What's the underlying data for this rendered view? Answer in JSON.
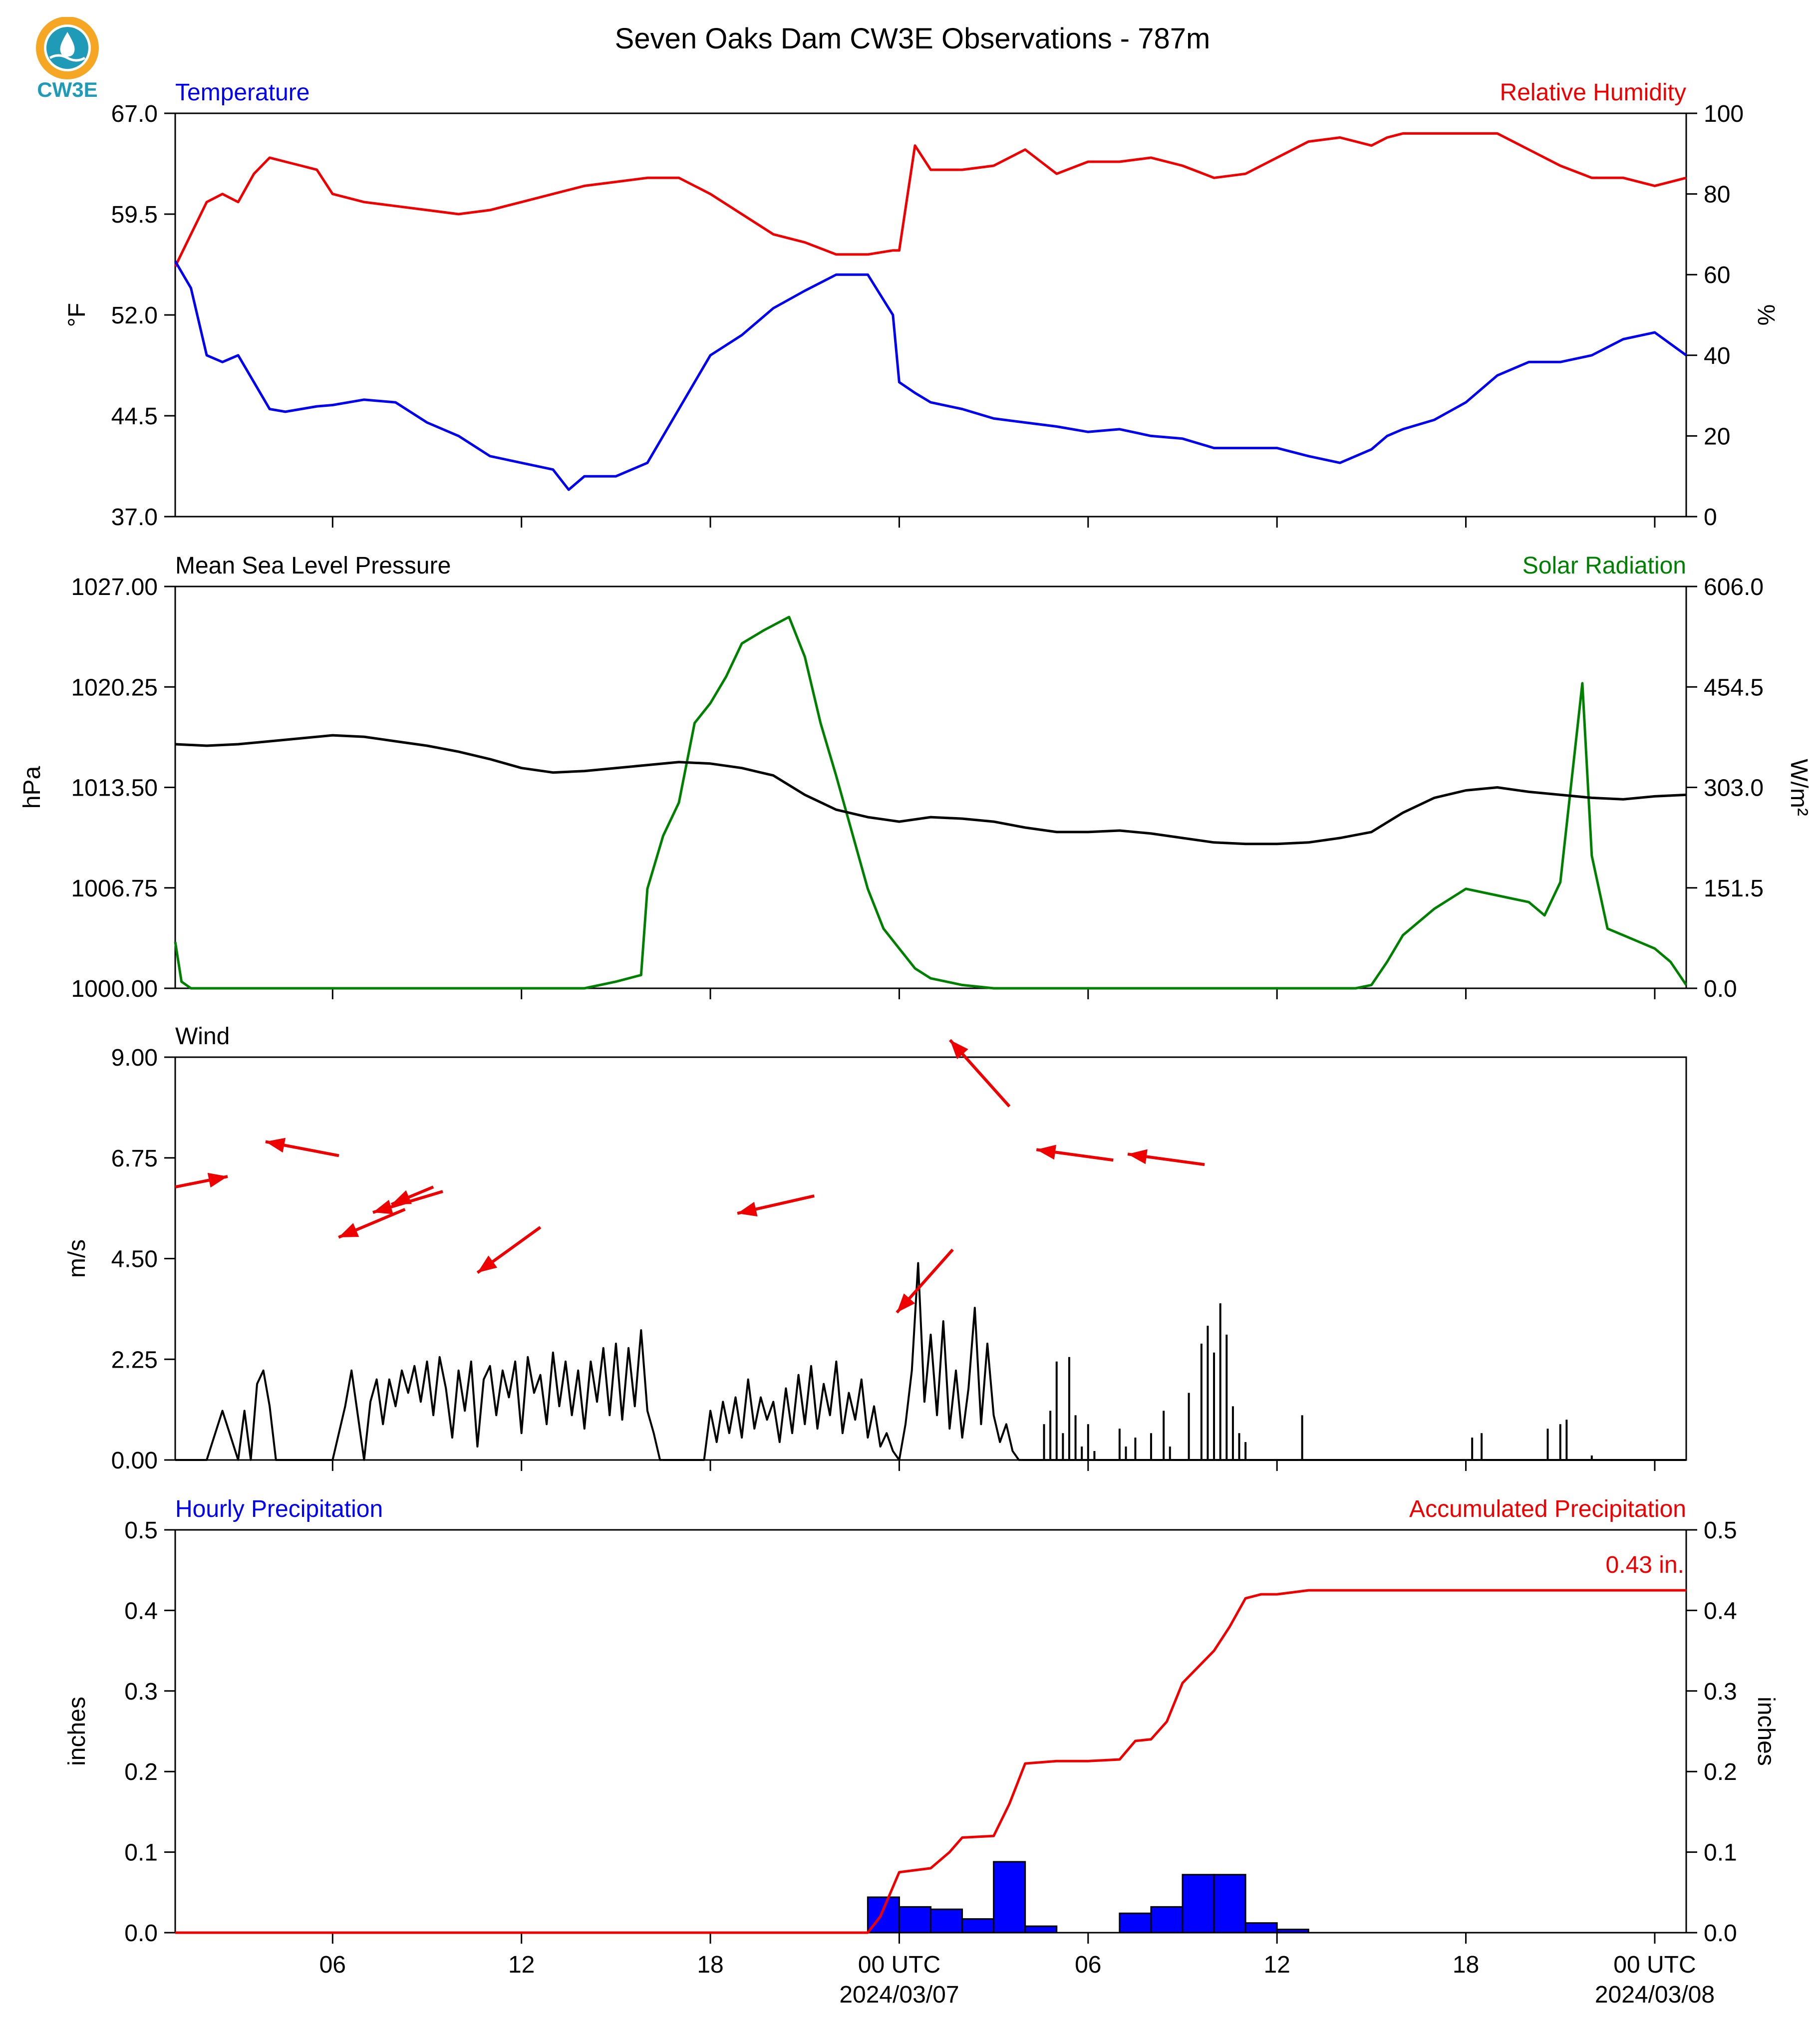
{
  "title": "Seven Oaks Dam CW3E Observations - 787m",
  "logo": {
    "text": "CW3E",
    "color": "#1f9bb8",
    "ring_color": "#f5a623"
  },
  "x_axis": {
    "start": "2024-03-06 01:00 UTC",
    "end": "2024-03-08 01:00 UTC",
    "ticks": [
      "06",
      "12",
      "18",
      "00 UTC",
      "06",
      "12",
      "18",
      "00 UTC"
    ],
    "date_labels": [
      "2024/03/07",
      "2024/03/08"
    ]
  },
  "chart_data": [
    {
      "type": "line",
      "name": "temperature-humidity",
      "left_label": "Temperature",
      "left_color": "#0000ee",
      "right_label": "Relative Humidity",
      "right_color": "#ee0000",
      "ylabel_left": "°F",
      "ylabel_right": "%",
      "ylim_left": [
        37.0,
        67.0
      ],
      "ylim_right": [
        0,
        100
      ],
      "yticks_left": [
        "37.0",
        "44.5",
        "52.0",
        "59.5",
        "67.0"
      ],
      "yticks_right": [
        "0",
        "20",
        "40",
        "60",
        "80",
        "100"
      ],
      "hours": [
        0,
        0.5,
        1,
        1.5,
        2,
        2.5,
        3,
        3.5,
        4,
        4.5,
        5,
        6,
        7,
        8,
        9,
        10,
        11,
        12,
        12.5,
        13,
        14,
        15,
        16,
        17,
        18,
        19,
        20,
        21,
        22,
        22.8,
        23,
        23.5,
        24,
        25,
        26,
        27,
        28,
        29,
        30,
        31,
        32,
        33,
        34,
        35,
        36,
        37,
        38,
        38.5,
        39,
        40,
        41,
        42,
        43,
        44,
        45,
        46,
        47,
        48
      ],
      "temperature_f": [
        56,
        54,
        49,
        48.5,
        49,
        47,
        45,
        44.8,
        45,
        45.2,
        45.3,
        45.7,
        45.5,
        44,
        43,
        41.5,
        41,
        40.5,
        39,
        40,
        40,
        41,
        45,
        49,
        50.5,
        52.5,
        53.8,
        55,
        55,
        52,
        47,
        46.2,
        45.5,
        45,
        44.3,
        44,
        43.7,
        43.3,
        43.5,
        43,
        42.8,
        42.1,
        42.1,
        42.1,
        41.5,
        41,
        42,
        43,
        43.5,
        44.2,
        45.5,
        47.5,
        48.5,
        48.5,
        49,
        50.2,
        50.7,
        49
      ],
      "humidity_pct": [
        62,
        70,
        78,
        80,
        78,
        85,
        89,
        88,
        87,
        86,
        80,
        78,
        77,
        76,
        75,
        76,
        78,
        80,
        81,
        82,
        83,
        84,
        84,
        80,
        75,
        70,
        68,
        65,
        65,
        66,
        66,
        92,
        86,
        86,
        87,
        91,
        85,
        88,
        88,
        89,
        87,
        84,
        85,
        89,
        93,
        94,
        92,
        94,
        95,
        95,
        95,
        95,
        91,
        87,
        84,
        84,
        82,
        84
      ]
    },
    {
      "type": "line",
      "name": "pressure-solar",
      "left_label": "Mean Sea Level Pressure",
      "left_color": "#000000",
      "right_label": "Solar Radiation",
      "right_color": "#008000",
      "ylabel_left": "hPa",
      "ylabel_right": "W/m²",
      "ylim_left": [
        1000.0,
        1027.0
      ],
      "ylim_right": [
        0.0,
        606.0
      ],
      "yticks_left": [
        "1000.00",
        "1006.75",
        "1013.50",
        "1020.25",
        "1027.00"
      ],
      "yticks_right": [
        "0.0",
        "151.5",
        "303.0",
        "454.5",
        "606.0"
      ],
      "hours": [
        0,
        1,
        2,
        3,
        4,
        5,
        6,
        7,
        8,
        9,
        10,
        11,
        12,
        13,
        14,
        15,
        16,
        17,
        18,
        19,
        20,
        21,
        22,
        23,
        24,
        25,
        26,
        27,
        28,
        29,
        30,
        31,
        32,
        33,
        34,
        35,
        36,
        37,
        38,
        39,
        40,
        41,
        42,
        43,
        44,
        45,
        46,
        47,
        48
      ],
      "pressure_hpa": [
        1016.4,
        1016.3,
        1016.4,
        1016.6,
        1016.8,
        1017.0,
        1016.9,
        1016.6,
        1016.3,
        1015.9,
        1015.4,
        1014.8,
        1014.5,
        1014.6,
        1014.8,
        1015.0,
        1015.2,
        1015.1,
        1014.8,
        1014.3,
        1013.0,
        1012.0,
        1011.5,
        1011.2,
        1011.5,
        1011.4,
        1011.2,
        1010.8,
        1010.5,
        1010.5,
        1010.6,
        1010.4,
        1010.1,
        1009.8,
        1009.7,
        1009.7,
        1009.8,
        1010.1,
        1010.5,
        1011.8,
        1012.8,
        1013.3,
        1013.5,
        1013.2,
        1013.0,
        1012.8,
        1012.7,
        1012.9,
        1013.0
      ],
      "solar_hours": [
        0,
        0.2,
        0.5,
        13,
        14,
        14.8,
        15,
        15.5,
        16,
        16.5,
        17,
        17.5,
        18,
        18.7,
        19.5,
        20,
        20.5,
        21,
        22,
        22.5,
        23,
        23.5,
        24,
        24.5,
        25,
        26,
        30,
        34,
        36,
        37,
        37.5,
        38,
        38.5,
        39,
        40,
        41,
        42,
        43,
        43.5,
        44,
        44.7,
        45,
        45.5,
        46,
        46.5,
        47,
        47.5,
        48
      ],
      "solar_wm2": [
        70,
        10,
        0,
        0,
        10,
        20,
        150,
        230,
        280,
        400,
        430,
        470,
        520,
        540,
        560,
        500,
        400,
        320,
        150,
        90,
        60,
        30,
        15,
        10,
        5,
        0,
        0,
        0,
        0,
        0,
        0,
        5,
        40,
        80,
        120,
        150,
        140,
        130,
        110,
        160,
        460,
        200,
        90,
        80,
        70,
        60,
        40,
        5
      ]
    },
    {
      "type": "line",
      "name": "wind",
      "left_label": "Wind",
      "left_color": "#000000",
      "ylabel_left": "m/s",
      "ylim_left": [
        0.0,
        9.0
      ],
      "yticks_left": [
        "0.00",
        "2.25",
        "4.50",
        "6.75",
        "9.00"
      ],
      "hours": [
        0,
        1,
        1.5,
        2,
        2.2,
        2.4,
        2.6,
        2.8,
        3,
        3.2,
        4,
        5,
        5.4,
        5.6,
        5.8,
        6,
        6.2,
        6.4,
        6.6,
        6.8,
        7,
        7.2,
        7.4,
        7.6,
        7.8,
        8,
        8.2,
        8.4,
        8.6,
        8.8,
        9,
        9.2,
        9.4,
        9.6,
        9.8,
        10,
        10.2,
        10.4,
        10.6,
        10.8,
        11,
        11.2,
        11.4,
        11.6,
        11.8,
        12,
        12.2,
        12.4,
        12.6,
        12.8,
        13,
        13.2,
        13.4,
        13.6,
        13.8,
        14,
        14.2,
        14.4,
        14.6,
        14.8,
        15,
        15.2,
        15.4,
        16,
        16.5,
        16.8,
        17,
        17.2,
        17.4,
        17.6,
        17.8,
        18,
        18.2,
        18.4,
        18.6,
        18.8,
        19,
        19.2,
        19.4,
        19.6,
        19.8,
        20,
        20.2,
        20.4,
        20.6,
        20.8,
        21,
        21.2,
        21.4,
        21.6,
        21.8,
        22,
        22.2,
        22.4,
        22.6,
        22.8,
        23,
        23.2,
        23.4,
        23.6,
        23.8,
        24,
        24.2,
        24.4,
        24.6,
        24.8,
        25,
        25.2,
        25.4,
        25.6,
        25.8,
        26,
        26.2,
        26.4,
        26.6,
        26.8,
        27,
        27.2,
        27.4,
        27.6,
        27.8,
        28,
        28.2,
        28.4,
        28.6,
        28.8,
        29,
        29.2,
        29.4,
        29.6,
        29.8,
        30,
        30.2,
        30.4,
        30.6,
        30.8,
        31,
        31.2,
        31.4,
        31.6,
        31.8,
        32,
        32.2,
        32.4,
        32.6,
        32.8,
        33,
        33.2,
        33.4,
        33.6,
        34,
        35,
        35.8,
        36,
        36.2,
        37,
        38,
        39,
        40,
        40.2,
        40.4,
        40.6,
        40.8,
        41,
        41.2,
        41.4,
        41.6,
        42,
        42.6,
        42.8,
        43,
        43.2,
        43.4,
        43.6,
        43.8,
        44,
        44.2,
        45,
        46,
        47,
        48
      ],
      "speed_ms": [
        0,
        0,
        1.1,
        0,
        1.1,
        0,
        1.7,
        2.0,
        1.2,
        0,
        0,
        0,
        1.2,
        2.0,
        1.0,
        0,
        1.3,
        1.8,
        0.8,
        1.8,
        1.2,
        2.0,
        1.5,
        2.1,
        1.3,
        2.2,
        1.0,
        2.3,
        1.6,
        0.5,
        2.0,
        1.1,
        2.2,
        0.3,
        1.8,
        2.1,
        1.0,
        2.0,
        1.4,
        2.2,
        0.6,
        2.3,
        1.5,
        1.9,
        0.8,
        2.4,
        1.2,
        2.2,
        1.0,
        2.0,
        0.7,
        2.2,
        1.3,
        2.5,
        1.0,
        2.6,
        0.9,
        2.5,
        1.2,
        2.9,
        1.1,
        0.6,
        0,
        0,
        0,
        0,
        1.1,
        0.4,
        1.3,
        0.6,
        1.4,
        0.5,
        1.8,
        0.7,
        1.4,
        0.9,
        1.3,
        0.4,
        1.6,
        0.6,
        1.9,
        0.8,
        2.1,
        0.7,
        1.7,
        1.0,
        2.2,
        0.6,
        1.5,
        0.9,
        1.8,
        0.5,
        1.2,
        0.3,
        0.6,
        0.2,
        0,
        0.8,
        2.0,
        4.4,
        1.3,
        2.8,
        1.0,
        3.1,
        0.7,
        2.0,
        0.5,
        1.6,
        3.4,
        0.8,
        2.6,
        1.0,
        0.4,
        0.8,
        0.2,
        0,
        0,
        0,
        0,
        0,
        0,
        0,
        0,
        0,
        0,
        0,
        0,
        0,
        0,
        0,
        0,
        0,
        0,
        0,
        0,
        0,
        0,
        0,
        0,
        0,
        0,
        0,
        0,
        0,
        0,
        0,
        0,
        0,
        0,
        0,
        0,
        0,
        0,
        0,
        0,
        0,
        0,
        0,
        0,
        0,
        0,
        0,
        0,
        0,
        0,
        0,
        0,
        0,
        0,
        0,
        0,
        0,
        0,
        0,
        0,
        0,
        0,
        0,
        0,
        0,
        0
      ],
      "speed_events": [
        {
          "hour": 27.6,
          "value": 0.8
        },
        {
          "hour": 27.8,
          "value": 1.1
        },
        {
          "hour": 28.0,
          "value": 2.2
        },
        {
          "hour": 28.2,
          "value": 0.6
        },
        {
          "hour": 28.4,
          "value": 2.3
        },
        {
          "hour": 28.6,
          "value": 1.0
        },
        {
          "hour": 28.8,
          "value": 0.3
        },
        {
          "hour": 29.0,
          "value": 0.8
        },
        {
          "hour": 29.2,
          "value": 0.2
        },
        {
          "hour": 30.0,
          "value": 0.7
        },
        {
          "hour": 30.2,
          "value": 0.3
        },
        {
          "hour": 30.5,
          "value": 0.5
        },
        {
          "hour": 31.0,
          "value": 0.6
        },
        {
          "hour": 31.4,
          "value": 1.1
        },
        {
          "hour": 31.6,
          "value": 0.3
        },
        {
          "hour": 32.2,
          "value": 1.5
        },
        {
          "hour": 32.6,
          "value": 2.6
        },
        {
          "hour": 32.8,
          "value": 3.0
        },
        {
          "hour": 33.0,
          "value": 2.4
        },
        {
          "hour": 33.2,
          "value": 3.5
        },
        {
          "hour": 33.4,
          "value": 2.8
        },
        {
          "hour": 33.6,
          "value": 1.2
        },
        {
          "hour": 33.8,
          "value": 0.6
        },
        {
          "hour": 34.0,
          "value": 0.4
        },
        {
          "hour": 35.8,
          "value": 1.0
        },
        {
          "hour": 41.2,
          "value": 0.5
        },
        {
          "hour": 41.5,
          "value": 0.6
        },
        {
          "hour": 43.6,
          "value": 0.7
        },
        {
          "hour": 44.0,
          "value": 0.8
        },
        {
          "hour": 44.2,
          "value": 0.9
        },
        {
          "hour": 45.0,
          "value": 0.1
        }
      ],
      "wind_vectors": [
        {
          "hour": 0.0,
          "speed_level": 6.1,
          "u": 1.5,
          "v": 0.3
        },
        {
          "hour": 5.2,
          "speed_level": 6.8,
          "u": -2.1,
          "v": 0.4
        },
        {
          "hour": 7.3,
          "speed_level": 5.6,
          "u": -1.9,
          "v": -0.8
        },
        {
          "hour": 8.2,
          "speed_level": 6.1,
          "u": -1.2,
          "v": -0.5
        },
        {
          "hour": 8.5,
          "speed_level": 6.0,
          "u": -2.0,
          "v": -0.6
        },
        {
          "hour": 11.6,
          "speed_level": 5.2,
          "u": -1.8,
          "v": -1.3
        },
        {
          "hour": 20.3,
          "speed_level": 5.9,
          "u": -2.2,
          "v": -0.5
        },
        {
          "hour": 24.7,
          "speed_level": 4.7,
          "u": -1.6,
          "v": -1.8
        },
        {
          "hour": 26.5,
          "speed_level": 7.9,
          "u": -1.7,
          "v": 1.9
        },
        {
          "hour": 29.8,
          "speed_level": 6.7,
          "u": -2.2,
          "v": 0.3
        },
        {
          "hour": 32.7,
          "speed_level": 6.6,
          "u": -2.2,
          "v": 0.3
        }
      ]
    },
    {
      "type": "bar",
      "name": "precipitation",
      "left_label": "Hourly Precipitation",
      "left_color": "#0000ee",
      "right_label": "Accumulated Precipitation",
      "right_color": "#ee0000",
      "ylabel_left": "inches",
      "ylabel_right": "inches",
      "ylim_left": [
        0.0,
        0.5
      ],
      "ylim_right": [
        0.0,
        0.5
      ],
      "yticks_left": [
        "0.0",
        "0.1",
        "0.2",
        "0.3",
        "0.4",
        "0.5"
      ],
      "yticks_right": [
        "0.0",
        "0.1",
        "0.2",
        "0.3",
        "0.4",
        "0.5"
      ],
      "hourly_bar_start_hours": [
        22,
        23,
        24,
        25,
        26,
        27,
        28,
        29,
        30,
        31,
        32,
        33,
        34,
        35,
        36,
        37,
        38,
        39,
        40,
        41,
        42,
        43,
        44,
        45,
        46,
        47
      ],
      "hourly_inches": [
        0.044,
        0.032,
        0.029,
        0.017,
        0.088,
        0.008,
        0,
        0,
        0.024,
        0.032,
        0.072,
        0.072,
        0.012,
        0.004,
        0,
        0,
        0,
        0,
        0,
        0,
        0,
        0,
        0,
        0,
        0,
        0
      ],
      "accum_hours": [
        0,
        22,
        22.4,
        23,
        24,
        24.6,
        25,
        26,
        26.5,
        27,
        28,
        29,
        30,
        30.5,
        31,
        31.5,
        32,
        33,
        33.5,
        34,
        34.5,
        35,
        36,
        48
      ],
      "accum_inches": [
        0,
        0,
        0.02,
        0.075,
        0.08,
        0.1,
        0.118,
        0.12,
        0.16,
        0.21,
        0.213,
        0.213,
        0.215,
        0.238,
        0.24,
        0.262,
        0.31,
        0.35,
        0.38,
        0.415,
        0.42,
        0.42,
        0.425,
        0.425
      ],
      "total_label": "0.43 in."
    }
  ]
}
